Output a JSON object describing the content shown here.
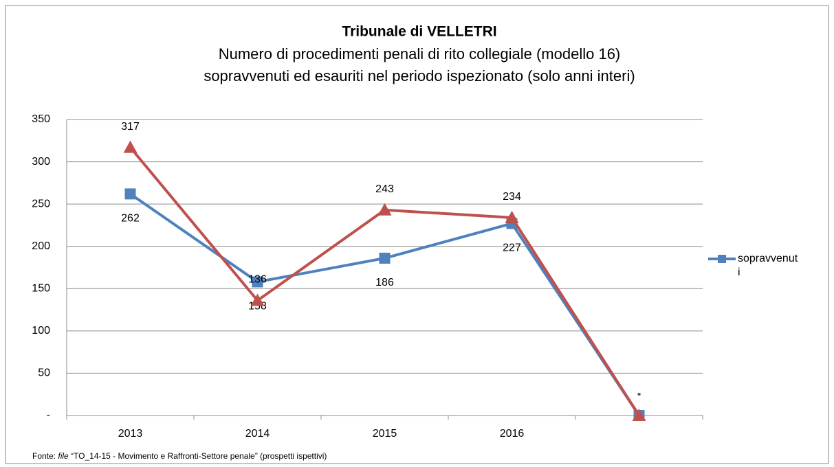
{
  "chart_data": {
    "type": "line",
    "title": "Tribunale di VELLETRI",
    "subtitle": [
      "Numero di procedimenti penali di rito collegiale (modello 16)",
      "sopravvenuti ed esauriti nel periodo ispezionato (solo anni interi)"
    ],
    "categories": [
      "2013",
      "2014",
      "2015",
      "2016",
      null
    ],
    "series": [
      {
        "name": "sopravvenuti",
        "color": "#4f81bd",
        "marker": "square",
        "values": [
          262,
          158,
          186,
          227,
          0
        ],
        "value_labels": [
          "262",
          "158",
          "186",
          "227",
          "-"
        ]
      },
      {
        "color": "#c0504d",
        "marker": "triangle",
        "values": [
          317,
          136,
          243,
          234,
          0
        ],
        "value_labels": [
          "317",
          "136",
          "243",
          "234",
          "-"
        ]
      }
    ],
    "ylim": [
      0,
      350
    ],
    "yticks": [
      {
        "value": 0,
        "label": "-"
      },
      50,
      100,
      150,
      200,
      250,
      300,
      350
    ],
    "grid": true,
    "legend": "right",
    "source": {
      "prefix": "Fonte: ",
      "italic": "file",
      "rest": " “TO_14-15 - Movimento e Raffronti-Settore penale” (prospetti ispettivi)"
    }
  }
}
